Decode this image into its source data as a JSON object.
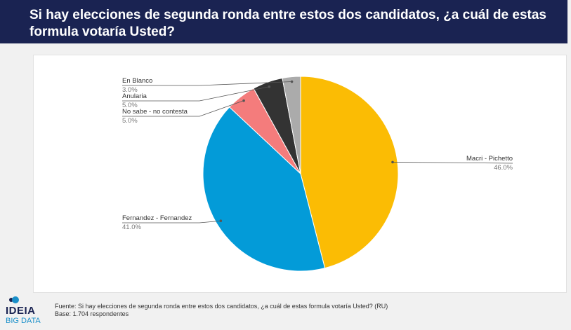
{
  "header": {
    "title": "Si hay elecciones de segunda ronda entre estos dos candidatos, ¿a cuál de estas formula votaría Usted?"
  },
  "chart_data": {
    "type": "pie",
    "slices": [
      {
        "label": "Macri - Pichetto",
        "value": 46.0,
        "value_label": "46.0%",
        "color": "#fbbc04"
      },
      {
        "label": "Fernandez - Fernandez",
        "value": 41.0,
        "value_label": "41.0%",
        "color": "#039bd8"
      },
      {
        "label": "No sabe - no contesta",
        "value": 5.0,
        "value_label": "5.0%",
        "color": "#f47c7c"
      },
      {
        "label": "Anularia",
        "value": 5.0,
        "value_label": "5.0%",
        "color": "#333333"
      },
      {
        "label": "En Blanco",
        "value": 3.0,
        "value_label": "3.0%",
        "color": "#ababab"
      }
    ]
  },
  "logo": {
    "name": "IDEIA",
    "sub": "BIG DATA"
  },
  "footer": {
    "source": "Fuente: Si hay elecciones de segunda ronda entre estos dos candidatos, ¿a cuál de estas formula votaría Usted? (RU)",
    "base": "Base: 1.704 respondentes"
  }
}
